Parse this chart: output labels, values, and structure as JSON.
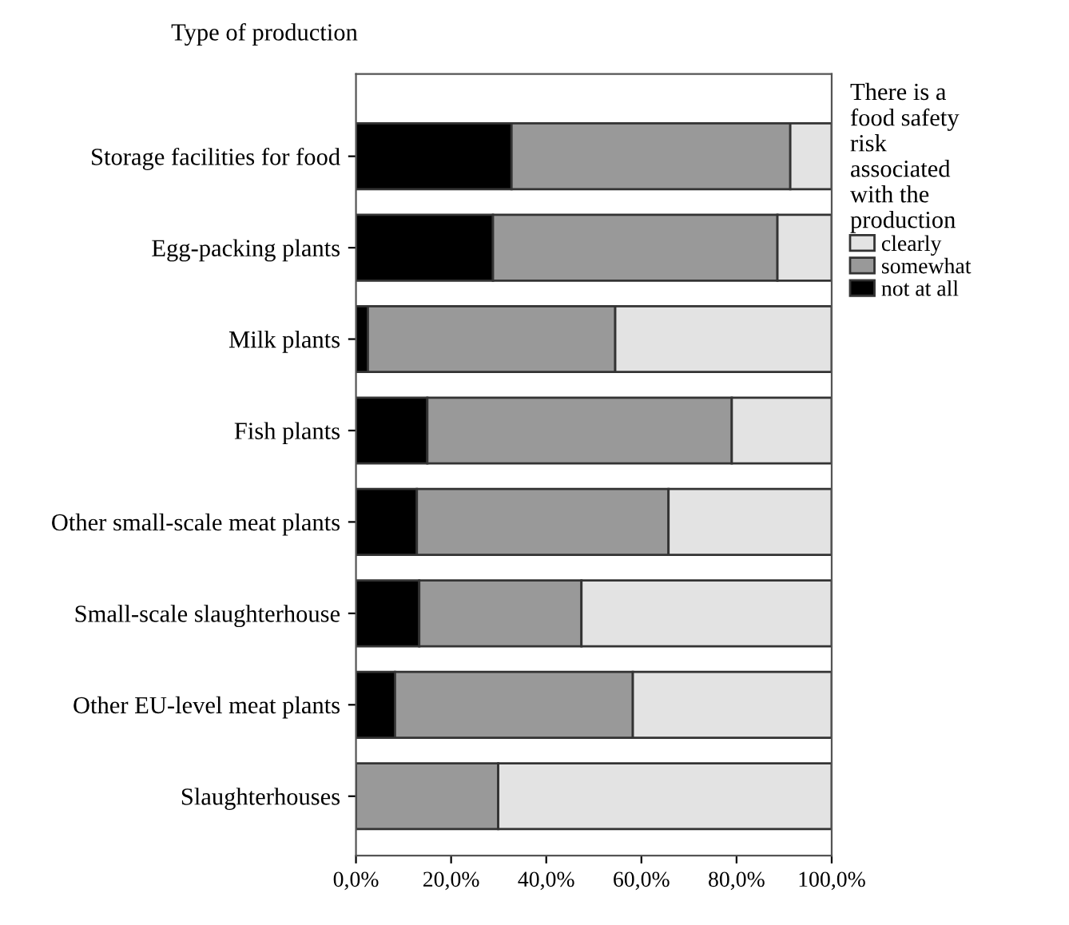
{
  "chart_data": {
    "type": "bar",
    "orientation": "horizontal",
    "stacked": true,
    "ylabel": "Type of production",
    "legend_title": "There is a\nfood safety\nrisk\nassociated\nwith the\nproduction",
    "legend": "right",
    "categories": [
      "Storage facilities for food",
      "Egg-packing plants",
      "Milk plants",
      "Fish plants",
      "Other small-scale meat plants",
      "Small-scale slaughterhouse",
      "Other EU-level meat plants",
      "Slaughterhouses"
    ],
    "series": [
      {
        "name": "not at all",
        "color": "#000000",
        "values": [
          32.7,
          28.8,
          2.5,
          15.0,
          12.8,
          13.3,
          8.2,
          0
        ]
      },
      {
        "name": "somewhat",
        "color": "#999999",
        "values": [
          58.6,
          59.8,
          52.0,
          64.0,
          52.9,
          34.1,
          50.0,
          29.9
        ]
      },
      {
        "name": "clearly",
        "color": "#e3e3e3",
        "values": [
          8.7,
          11.4,
          45.5,
          21.0,
          34.3,
          52.6,
          41.8,
          70.1
        ]
      }
    ],
    "xlim": [
      0,
      100
    ],
    "xticks": [
      {
        "value": 0,
        "label": "0,0%"
      },
      {
        "value": 20,
        "label": "20,0%"
      },
      {
        "value": 40,
        "label": "40,0%"
      },
      {
        "value": 60,
        "label": "60,0%"
      },
      {
        "value": 80,
        "label": "80,0%"
      },
      {
        "value": 100,
        "label": "100,0%"
      }
    ],
    "grid": false
  }
}
